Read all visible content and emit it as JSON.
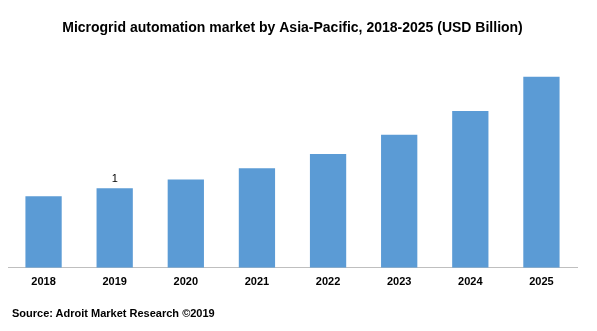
{
  "chart_data": {
    "type": "bar",
    "title": "Microgrid automation market by Asia-Pacific, 2018-2025 (USD Billion)",
    "source": "Source: Adroit Market Research ©2019",
    "categories": [
      "2018",
      "2019",
      "2020",
      "2021",
      "2022",
      "2023",
      "2024",
      "2025"
    ],
    "values": [
      0.9,
      1,
      1.11,
      1.25,
      1.43,
      1.67,
      1.97,
      2.4
    ],
    "value_labels": [
      null,
      "1",
      null,
      null,
      null,
      null,
      null,
      null
    ],
    "data_labels": true,
    "color": "#5b9bd5",
    "ylim": [
      0,
      2.6
    ],
    "grid": false,
    "tick_labels": "x"
  }
}
